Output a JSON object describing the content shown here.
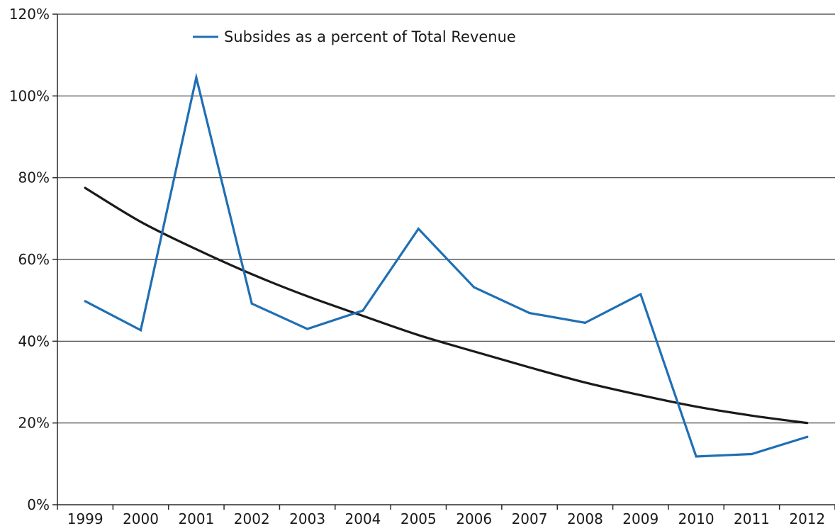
{
  "chart_data": {
    "type": "line",
    "title": "",
    "xlabel": "",
    "ylabel": "",
    "categories": [
      "1999",
      "2000",
      "2001",
      "2002",
      "2003",
      "2004",
      "2005",
      "2006",
      "2007",
      "2008",
      "2009",
      "2010",
      "2011",
      "2012"
    ],
    "y_ticks": [
      "0%",
      "20%",
      "40%",
      "60%",
      "80%",
      "100%",
      "120%"
    ],
    "ylim": [
      0,
      120
    ],
    "y_unit": "%",
    "grid": "horizontal",
    "legend_position": "top-center",
    "series": [
      {
        "name": "Subsides as a percent of Total Revenue",
        "color": "#1f6fb4",
        "values": [
          49.8,
          42.7,
          104.5,
          49.2,
          43.0,
          47.5,
          67.5,
          53.2,
          46.9,
          44.5,
          51.5,
          11.8,
          12.4,
          16.6
        ]
      }
    ],
    "trendline": {
      "type": "exponential",
      "color": "#1a1a1a",
      "values": [
        77.5,
        69.2,
        62.5,
        56.4,
        51.0,
        46.2,
        41.5,
        37.5,
        33.6,
        29.9,
        26.8,
        24.0,
        21.8,
        20.0
      ]
    }
  }
}
